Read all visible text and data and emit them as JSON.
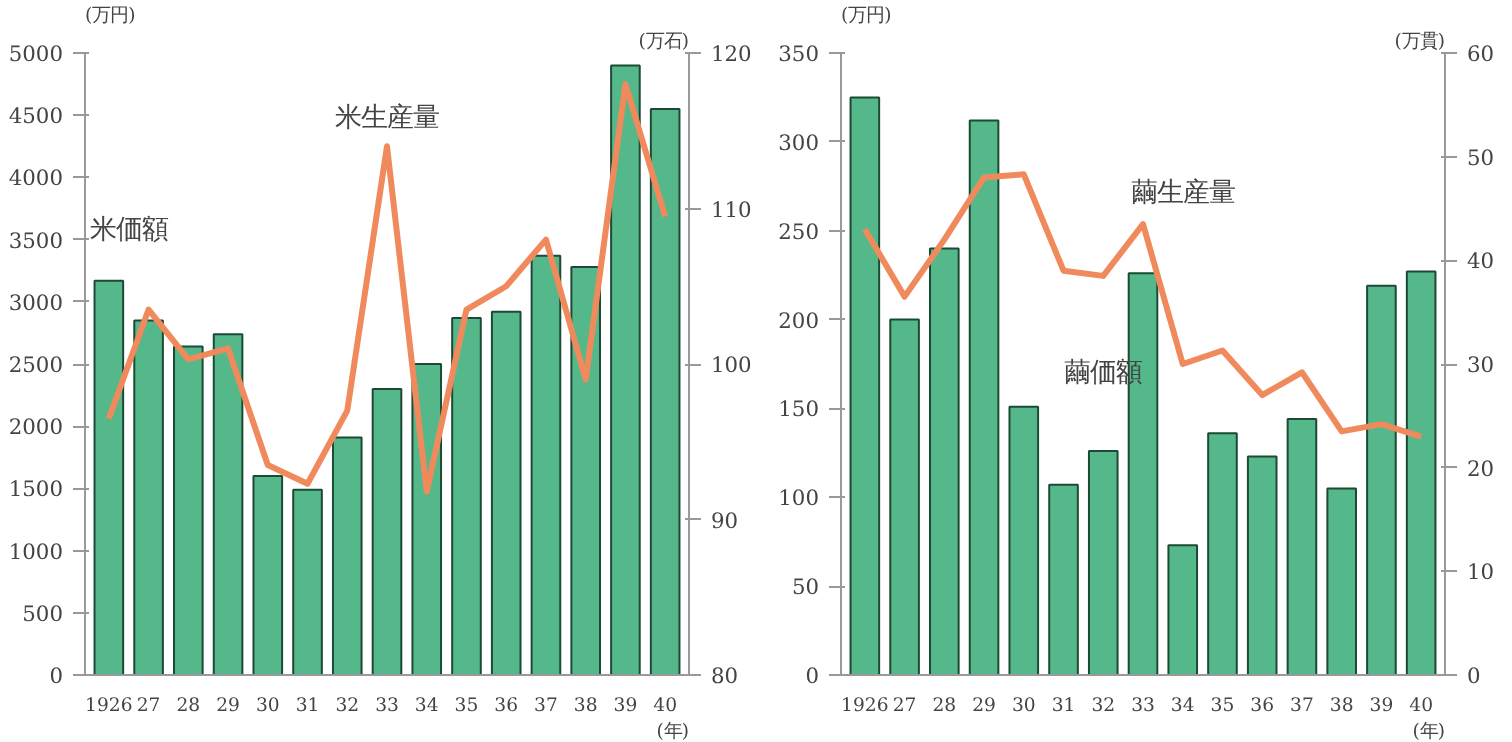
{
  "chart_data": [
    {
      "type": "bar",
      "categories": [
        "1926",
        "27",
        "28",
        "29",
        "30",
        "31",
        "32",
        "33",
        "34",
        "35",
        "36",
        "37",
        "38",
        "39",
        "40"
      ],
      "xlabel": "(年)",
      "ylabel": "(万円)",
      "y2label": "(万石)",
      "ylim": [
        0,
        5000
      ],
      "yticks": [
        0,
        500,
        1000,
        1500,
        2000,
        2500,
        3000,
        3500,
        4000,
        4500,
        5000
      ],
      "y2lim": [
        80,
        120
      ],
      "y2ticks": [
        80,
        90,
        100,
        110,
        120
      ],
      "grid": false,
      "series": [
        {
          "color": "#55b88a",
          "values": [
            3170,
            2850,
            2640,
            2740,
            1600,
            1490,
            1910,
            2300,
            2500,
            2870,
            2920,
            3370,
            3280,
            4900,
            4550
          ]
        },
        {
          "type": "line",
          "axis": "y2",
          "color": "#f08a5d",
          "values": [
            96.5,
            103.5,
            100.3,
            101,
            93.5,
            92.3,
            97,
            114,
            91.8,
            103.5,
            105,
            108,
            99,
            118,
            109.5
          ]
        }
      ],
      "annotations": [
        "米価額",
        "米生産量"
      ]
    },
    {
      "type": "bar",
      "categories": [
        "1926",
        "27",
        "28",
        "29",
        "30",
        "31",
        "32",
        "33",
        "34",
        "35",
        "36",
        "37",
        "38",
        "39",
        "40"
      ],
      "xlabel": "(年)",
      "ylabel": "(万円)",
      "y2label": "(万貫)",
      "ylim": [
        0,
        350
      ],
      "yticks": [
        0,
        50,
        100,
        150,
        200,
        250,
        300,
        350
      ],
      "y2lim": [
        0,
        60
      ],
      "y2ticks": [
        0,
        10,
        20,
        30,
        40,
        50,
        60
      ],
      "grid": false,
      "series": [
        {
          "color": "#55b88a",
          "values": [
            325,
            200,
            240,
            312,
            151,
            107,
            126,
            226,
            73,
            136,
            123,
            144,
            105,
            219,
            227
          ]
        },
        {
          "type": "line",
          "axis": "y2",
          "color": "#f08a5d",
          "values": [
            43,
            36.5,
            42,
            48,
            48.3,
            39,
            38.5,
            43.5,
            30,
            31.3,
            27,
            29.2,
            23.5,
            24.2,
            23
          ]
        }
      ],
      "annotations": [
        "繭価額",
        "繭生産量"
      ]
    }
  ]
}
